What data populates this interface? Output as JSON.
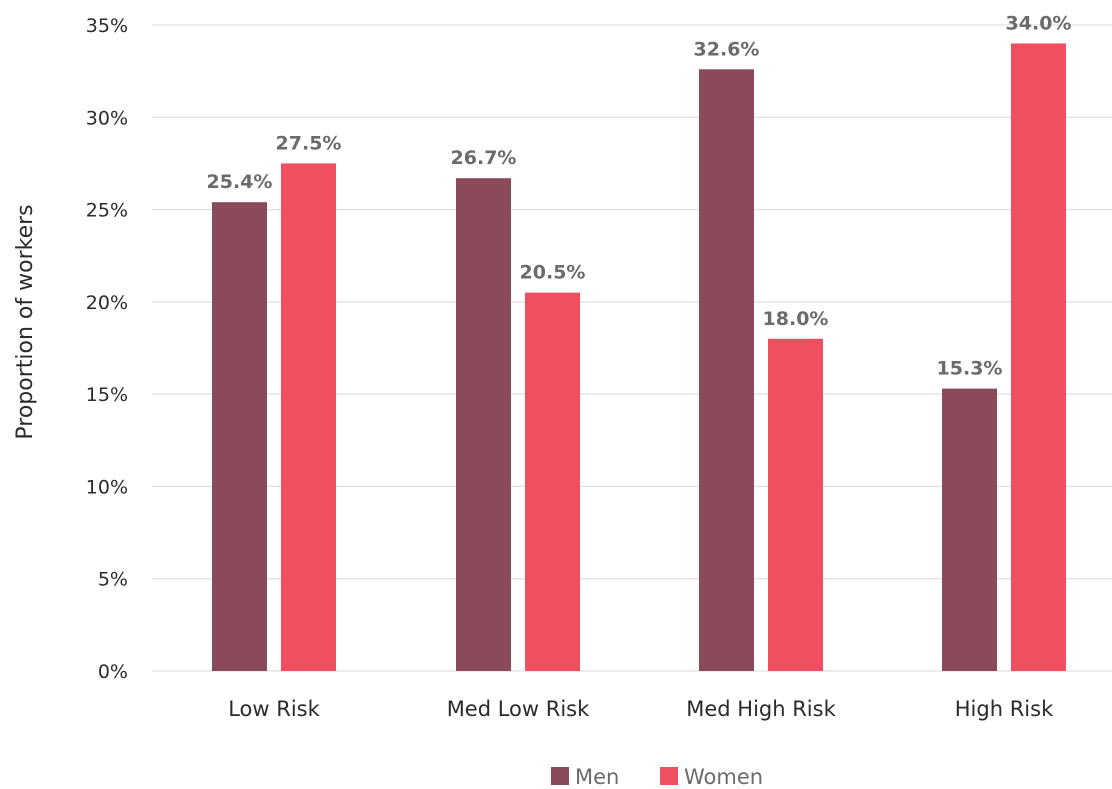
{
  "chart_data": {
    "type": "bar",
    "title": "",
    "xlabel": "",
    "ylabel": "Proportion of workers",
    "categories": [
      "Low Risk",
      "Med Low Risk",
      "Med High Risk",
      "High Risk"
    ],
    "series": [
      {
        "name": "Men",
        "color": "#8b4a5a",
        "values": [
          25.4,
          26.7,
          32.6,
          15.3
        ],
        "labels": [
          "25.4%",
          "26.7%",
          "32.6%",
          "15.3%"
        ]
      },
      {
        "name": "Women",
        "color": "#ef4f5f",
        "values": [
          27.5,
          20.5,
          18.0,
          34.0
        ],
        "labels": [
          "27.5%",
          "20.5%",
          "18.0%",
          "34.0%"
        ]
      }
    ],
    "ylim": [
      0,
      35
    ],
    "yticks": [
      0,
      5,
      10,
      15,
      20,
      25,
      30,
      35
    ],
    "ytick_labels": [
      "0%",
      "5%",
      "10%",
      "15%",
      "20%",
      "25%",
      "30%",
      "35%"
    ],
    "grid": true,
    "legend_position": "bottom"
  }
}
